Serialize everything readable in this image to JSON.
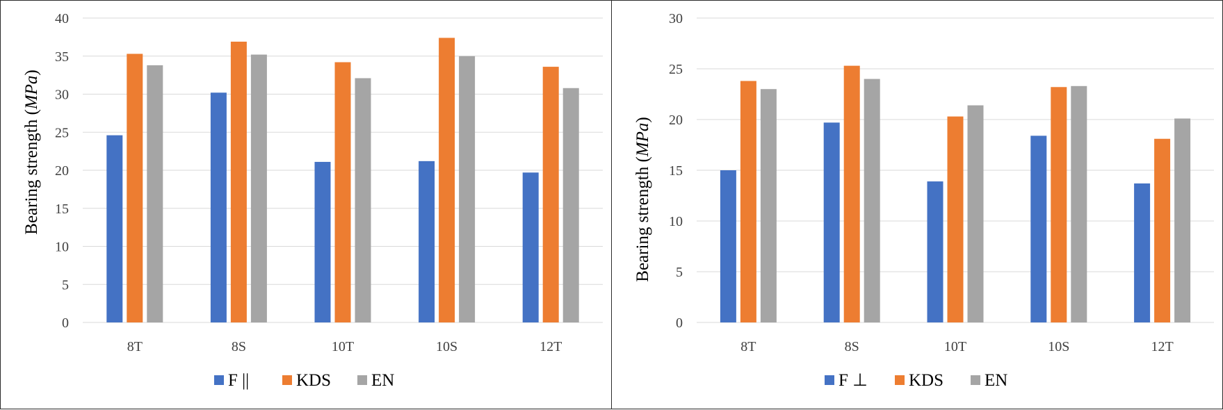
{
  "chart_data": [
    {
      "type": "bar",
      "categories": [
        "8T",
        "8S",
        "10T",
        "10S",
        "12T"
      ],
      "series": [
        {
          "name": "F ||",
          "color": "#4472C4",
          "values": [
            24.6,
            30.2,
            21.1,
            21.2,
            19.7
          ]
        },
        {
          "name": "KDS",
          "color": "#ED7D31",
          "values": [
            35.3,
            36.9,
            34.2,
            37.4,
            33.6
          ]
        },
        {
          "name": "EN",
          "color": "#A5A5A5",
          "values": [
            33.8,
            35.2,
            32.1,
            35.0,
            30.8
          ]
        }
      ],
      "ylabel": "Bearing strength (",
      "ylabel_unit": "MPa",
      "ylabel_close": ")",
      "ylim": [
        0,
        40
      ],
      "yticks": [
        0,
        5,
        10,
        15,
        20,
        25,
        30,
        35,
        40
      ],
      "grid": true,
      "legend": "bottom"
    },
    {
      "type": "bar",
      "categories": [
        "8T",
        "8S",
        "10T",
        "10S",
        "12T"
      ],
      "series": [
        {
          "name": "F ⊥",
          "color": "#4472C4",
          "values": [
            15.0,
            19.7,
            13.9,
            18.4,
            13.7
          ]
        },
        {
          "name": "KDS",
          "color": "#ED7D31",
          "values": [
            23.8,
            25.3,
            20.3,
            23.2,
            18.1
          ]
        },
        {
          "name": "EN",
          "color": "#A5A5A5",
          "values": [
            23.0,
            24.0,
            21.4,
            23.3,
            20.1
          ]
        }
      ],
      "ylabel": "Bearing strength (",
      "ylabel_unit": "MPa",
      "ylabel_close": ")",
      "ylim": [
        0,
        30
      ],
      "yticks": [
        0,
        5,
        10,
        15,
        20,
        25,
        30
      ],
      "grid": true,
      "legend": "bottom"
    }
  ]
}
